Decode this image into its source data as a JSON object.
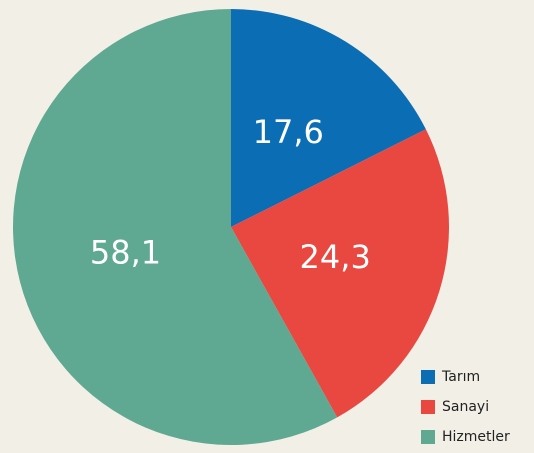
{
  "chart_data": {
    "type": "pie",
    "categories": [
      "Tarım",
      "Sanayi",
      "Hizmetler"
    ],
    "values": [
      17.6,
      24.3,
      58.1
    ],
    "value_labels": [
      "17,6",
      "24,3",
      "58,1"
    ],
    "colors": [
      "#0b6db4",
      "#e8483f",
      "#5fa892"
    ],
    "legend": "bottom-right"
  }
}
